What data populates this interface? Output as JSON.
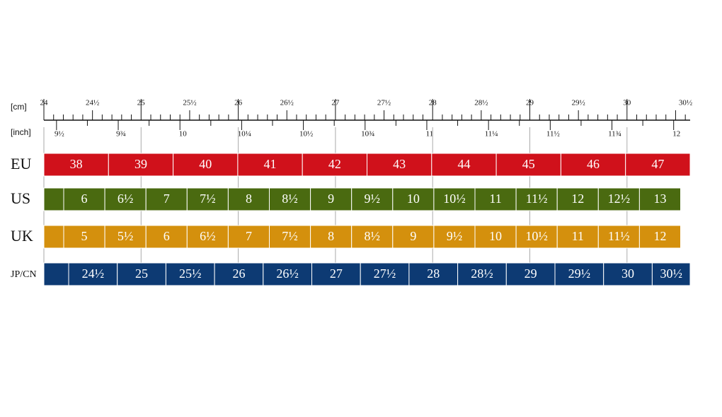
{
  "ruler": {
    "cm_label": "[cm]",
    "inch_label": "[inch]",
    "cm_marks": [
      "24",
      "24½",
      "25",
      "25½",
      "26",
      "26½",
      "27",
      "27½",
      "28",
      "28½",
      "29",
      "29½",
      "30",
      "30½"
    ],
    "inch_marks": [
      "9½",
      "9¾",
      "10",
      "10¼",
      "10½",
      "10¾",
      "11",
      "11¼",
      "11½",
      "11¾",
      "12"
    ]
  },
  "rows": [
    {
      "label": "EU",
      "sizes": [
        "38",
        "39",
        "40",
        "41",
        "42",
        "43",
        "44",
        "45",
        "46",
        "47"
      ]
    },
    {
      "label": "US",
      "sizes": [
        "6",
        "6½",
        "7",
        "7½",
        "8",
        "8½",
        "9",
        "9½",
        "10",
        "10½",
        "11",
        "11½",
        "12",
        "12½",
        "13"
      ]
    },
    {
      "label": "UK",
      "sizes": [
        "5",
        "5½",
        "6",
        "6½",
        "7",
        "7½",
        "8",
        "8½",
        "9",
        "9½",
        "10",
        "10½",
        "11",
        "11½",
        "12"
      ]
    },
    {
      "label": "JP/CN",
      "sizes": [
        "24½",
        "25",
        "25½",
        "26",
        "26½",
        "27",
        "27½",
        "28",
        "28½",
        "29",
        "29½",
        "30",
        "30½"
      ]
    }
  ]
}
